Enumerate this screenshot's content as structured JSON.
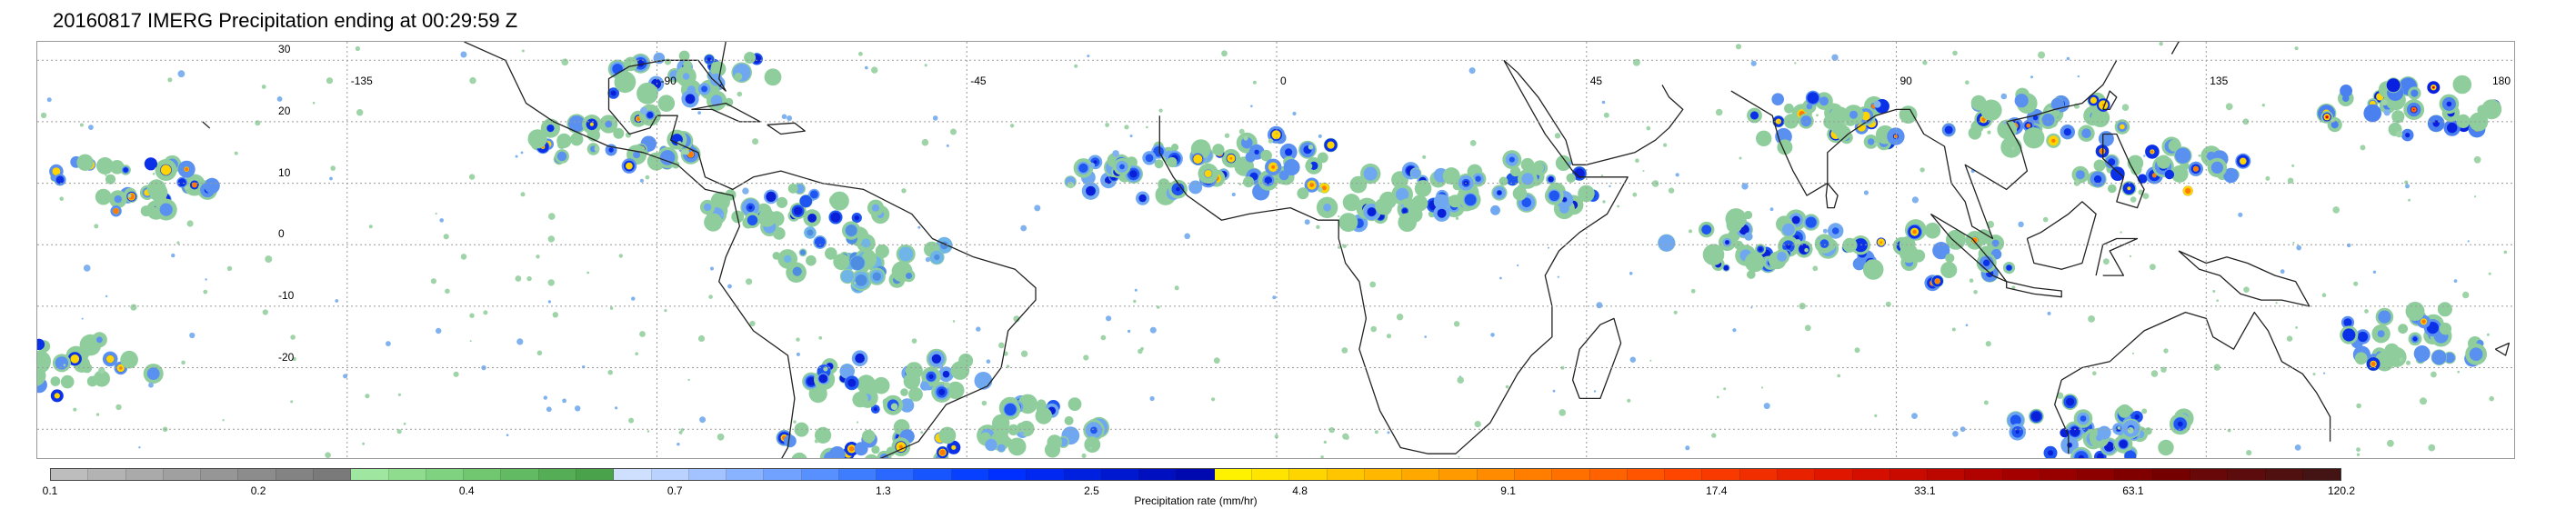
{
  "title": "20160817 IMERG Precipitation ending at 00:29:59 Z",
  "map": {
    "lon_labels": [
      "-135",
      "-90",
      "-45",
      "0",
      "45",
      "90",
      "135",
      "180"
    ],
    "lat_labels": [
      "30",
      "20",
      "10",
      "0",
      "-10",
      "-20"
    ],
    "gridline_color": "#9a9a9a",
    "coastline_color": "#222222"
  },
  "colorbar": {
    "label": "Precipitation rate (mm/hr)",
    "ticks": [
      "0.1",
      "0.2",
      "0.4",
      "0.7",
      "1.3",
      "2.5",
      "4.8",
      "9.1",
      "17.4",
      "33.1",
      "63.1",
      "120.2"
    ],
    "colors": [
      "#bdbdbd",
      "#b3b3b3",
      "#aaaaaa",
      "#a0a0a0",
      "#969696",
      "#8c8c8c",
      "#838383",
      "#7a7a7a",
      "#9fe6a0",
      "#8fdc8f",
      "#7fd27f",
      "#70c770",
      "#62bb62",
      "#55ae55",
      "#4aa24a",
      "#cfe0ff",
      "#b9d2ff",
      "#a2c3ff",
      "#8ab3ff",
      "#71a2ff",
      "#5890ff",
      "#3f7dff",
      "#2a68ff",
      "#1755ff",
      "#0840ff",
      "#0030ff",
      "#0028f0",
      "#0020e0",
      "#0018d0",
      "#0010c0",
      "#0008b0",
      "#fff200",
      "#ffe400",
      "#ffd500",
      "#ffc600",
      "#ffb700",
      "#ffa800",
      "#ff9a00",
      "#ff8c00",
      "#ff7e00",
      "#ff7000",
      "#ff6200",
      "#ff5400",
      "#ff4600",
      "#f83a00",
      "#f02e00",
      "#e82200",
      "#e01600",
      "#d40f00",
      "#c80a00",
      "#bc0600",
      "#b00300",
      "#a40000",
      "#980000",
      "#8c0000",
      "#800000",
      "#740000",
      "#680808",
      "#5c0c0c",
      "#501010",
      "#441414"
    ]
  },
  "chart_data": {
    "type": "heatmap",
    "title": "20160817 IMERG Precipitation ending at 00:29:59 Z",
    "xlabel": "",
    "ylabel": "",
    "x_ticks": [
      -135,
      -90,
      -45,
      0,
      45,
      90,
      135,
      180
    ],
    "y_ticks": [
      30,
      20,
      10,
      0,
      -10,
      -20
    ],
    "xlim": [
      -180,
      180
    ],
    "ylim": [
      -35,
      33
    ],
    "grid": true,
    "colorbar_label": "Precipitation rate (mm/hr)",
    "colorbar_ticks": [
      0.1,
      0.2,
      0.4,
      0.7,
      1.3,
      2.5,
      4.8,
      9.1,
      17.4,
      33.1,
      63.1,
      120.2
    ],
    "features": [
      {
        "lon": -165,
        "lat": 10,
        "intensity": "heavy"
      },
      {
        "lon": -175,
        "lat": -20,
        "intensity": "heavy"
      },
      {
        "lon": -95,
        "lat": 17,
        "intensity": "heavy"
      },
      {
        "lon": -85,
        "lat": 27,
        "intensity": "moderate"
      },
      {
        "lon": -70,
        "lat": 5,
        "intensity": "moderate"
      },
      {
        "lon": -60,
        "lat": -2,
        "intensity": "light"
      },
      {
        "lon": -55,
        "lat": -22,
        "intensity": "moderate"
      },
      {
        "lon": -60,
        "lat": -33,
        "intensity": "heavy"
      },
      {
        "lon": -35,
        "lat": -30,
        "intensity": "moderate"
      },
      {
        "lon": -20,
        "lat": 12,
        "intensity": "moderate"
      },
      {
        "lon": 0,
        "lat": 13,
        "intensity": "heavy"
      },
      {
        "lon": 15,
        "lat": 8,
        "intensity": "moderate"
      },
      {
        "lon": 35,
        "lat": 10,
        "intensity": "moderate"
      },
      {
        "lon": 70,
        "lat": 0,
        "intensity": "moderate"
      },
      {
        "lon": 80,
        "lat": 20,
        "intensity": "heavy"
      },
      {
        "lon": 95,
        "lat": -2,
        "intensity": "heavy"
      },
      {
        "lon": 110,
        "lat": 20,
        "intensity": "heavy"
      },
      {
        "lon": 130,
        "lat": 12,
        "intensity": "heavy"
      },
      {
        "lon": 165,
        "lat": 22,
        "intensity": "extreme"
      },
      {
        "lon": 165,
        "lat": -15,
        "intensity": "heavy"
      },
      {
        "lon": 120,
        "lat": -30,
        "intensity": "moderate"
      }
    ]
  }
}
